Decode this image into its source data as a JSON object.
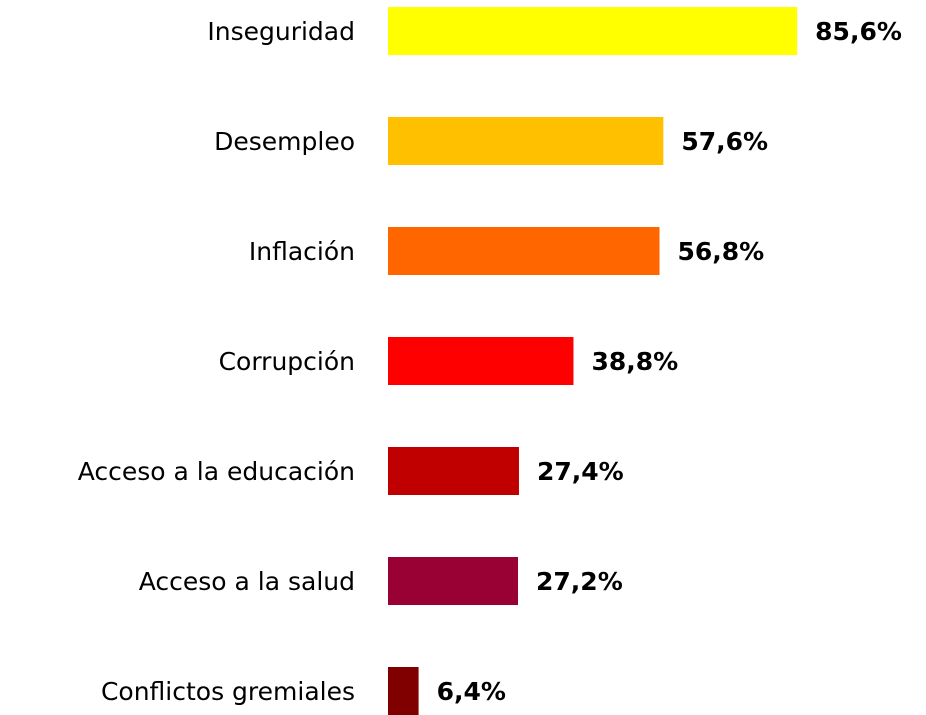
{
  "chart_data": {
    "type": "bar",
    "orientation": "horizontal",
    "categories": [
      "Inseguridad",
      "Desempleo",
      "Inflación",
      "Corrupción",
      "Acceso a la educación",
      "Acceso a la salud",
      "Conflictos gremiales"
    ],
    "values": [
      85.6,
      57.6,
      56.8,
      38.8,
      27.4,
      27.2,
      6.4
    ],
    "value_labels": [
      "85,6%",
      "57,6%",
      "56,8%",
      "38,8%",
      "27,4%",
      "27,2%",
      "6,4%"
    ],
    "colors": [
      "#FFFF00",
      "#FFC000",
      "#FF6600",
      "#FF0000",
      "#C00000",
      "#990033",
      "#800000"
    ]
  }
}
